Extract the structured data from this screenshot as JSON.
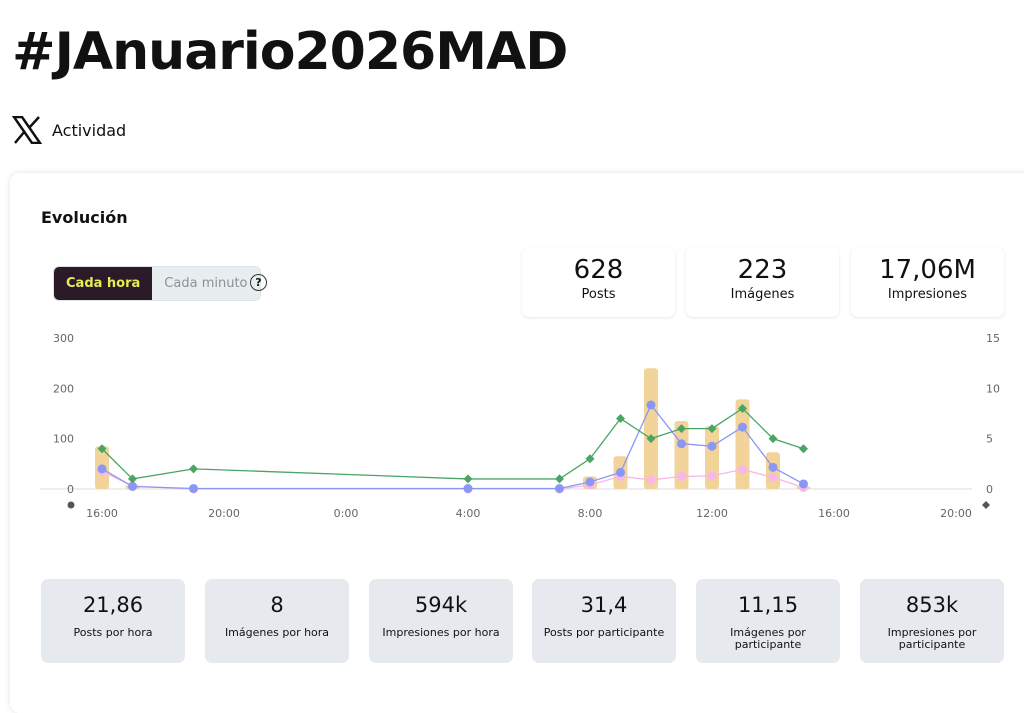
{
  "header": {
    "title": "#JAnuario2026MAD",
    "platform_icon": "x-logo-icon",
    "section": "Actividad"
  },
  "evolution": {
    "title": "Evolución",
    "toggle": {
      "options": [
        "Cada hora",
        "Cada minuto"
      ],
      "selected": "Cada hora"
    },
    "help_icon": "?"
  },
  "kpis": [
    {
      "value": "628",
      "label": "Posts",
      "bg": "#8b97f5",
      "fg": "#1e1f4d"
    },
    {
      "value": "223",
      "label": "Imágenes",
      "bg": "#f9b0ea",
      "fg": "#4a1040"
    },
    {
      "value": "17,06M",
      "label": "Impresiones",
      "bg": "#e6a533",
      "fg": "#4a3208"
    }
  ],
  "chart_data": {
    "type": "bar+line",
    "x": [
      "16:00",
      "17:00",
      "19:00",
      "4:00",
      "7:00",
      "8:00",
      "9:00",
      "10:00",
      "11:00",
      "12:00",
      "13:00",
      "14:00",
      "15:00"
    ],
    "x_ticks": [
      "16:00",
      "20:00",
      "0:00",
      "4:00",
      "8:00",
      "12:00",
      "16:00",
      "20:00"
    ],
    "y_left": {
      "ticks": [
        "0",
        "100",
        "200",
        "300"
      ],
      "range": [
        0,
        300
      ]
    },
    "y_right": {
      "ticks": [
        "0",
        "5",
        "10",
        "15"
      ],
      "range": [
        0,
        15
      ]
    },
    "grid": false,
    "series": [
      {
        "kind": "bar",
        "axis": "left",
        "color": "#f2d49a",
        "values": [
          85,
          8,
          null,
          null,
          null,
          25,
          65,
          240,
          135,
          125,
          178,
          73,
          5
        ]
      },
      {
        "kind": "line",
        "marker": "circle",
        "axis": "left",
        "color": "#f9b6e8",
        "values": [
          35,
          6,
          0,
          0,
          0,
          8,
          25,
          18,
          25,
          26,
          39,
          23,
          3
        ]
      },
      {
        "kind": "line",
        "marker": "circle",
        "axis": "left",
        "color": "#8b97f5",
        "values": [
          40,
          5,
          1,
          1,
          1,
          14,
          33,
          167,
          90,
          85,
          123,
          43,
          10
        ]
      },
      {
        "kind": "line",
        "marker": "diamond",
        "axis": "right",
        "color": "#4aa564",
        "values": [
          4,
          1,
          2,
          1,
          1,
          3,
          7,
          5,
          6,
          6,
          8,
          5,
          4
        ]
      }
    ]
  },
  "stats": [
    {
      "value": "21,86",
      "label": "Posts por hora"
    },
    {
      "value": "8",
      "label": "Imágenes por hora"
    },
    {
      "value": "594k",
      "label": "Impresiones por hora"
    },
    {
      "value": "31,4",
      "label": "Posts por participante"
    },
    {
      "value": "11,15",
      "label": "Imágenes por participante"
    },
    {
      "value": "853k",
      "label": "Impresiones por participante"
    }
  ]
}
